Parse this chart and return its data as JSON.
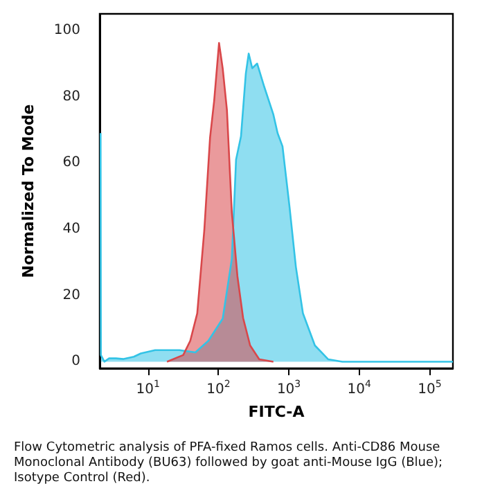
{
  "chart_data": {
    "type": "area",
    "xlabel": "FITC-A",
    "ylabel": "Normalized To Mode",
    "log": "x",
    "xlim": [
      2.06,
      214000
    ],
    "xticks": [
      {
        "value": 10,
        "label": "10$^{1}$"
      },
      {
        "value": 100,
        "label": "10$^{2}$"
      },
      {
        "value": 1000,
        "label": "10$^{3}$"
      },
      {
        "value": 10000,
        "label": "10$^{4}$"
      },
      {
        "value": 100000,
        "label": "10$^{5}$"
      }
    ],
    "ylim": [
      -2,
      105
    ],
    "yticks": [
      0,
      20,
      40,
      60,
      80,
      100
    ],
    "grid": false,
    "series": [
      {
        "color": "#33c3e6",
        "x": [
          2.12,
          2.14,
          2.4,
          2.8,
          3.5,
          4.5,
          6.3,
          7.9,
          12.6,
          20,
          28,
          47,
          72,
          115,
          155,
          178,
          209,
          245,
          269,
          302,
          355,
          447,
          603,
          692,
          813,
          1023,
          1259,
          1585,
          2344,
          3631,
          5754,
          214000
        ],
        "values": [
          69,
          2,
          0,
          1,
          1,
          0.8,
          1.5,
          2.5,
          3.5,
          3.5,
          3.5,
          2.8,
          6.3,
          13,
          31,
          61,
          68,
          87,
          93,
          88.6,
          90,
          83,
          74.6,
          69,
          65,
          46.7,
          28.6,
          14.6,
          4.9,
          0.7,
          0,
          0
        ]
      },
      {
        "color": "#d9474a",
        "x": [
          18.6,
          31.6,
          39.8,
          50,
          63,
          76,
          87,
          102,
          115,
          132,
          155,
          186,
          224,
          282,
          380,
          603
        ],
        "values": [
          0,
          2,
          6.3,
          14.6,
          39.7,
          67.6,
          78.8,
          96.2,
          88.5,
          76,
          45,
          25.8,
          13.2,
          4.9,
          0.7,
          0
        ]
      }
    ],
    "annotations": [
      "Flow Cytometric analysis of PFA-fixed Ramos cells. Anti-CD86 Mouse Monoclonal Antibody (BU63) followed by goat anti-Mouse IgG (Blue); Isotype Control (Red)."
    ]
  }
}
